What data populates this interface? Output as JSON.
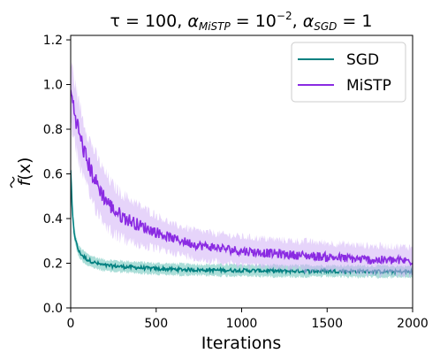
{
  "chart_data": {
    "type": "line",
    "title": "τ = 100, α_MiSTP = 10⁻², α_SGD = 1",
    "title_parts": {
      "tau": "τ = 100, ",
      "alpha": "α",
      "mistp_sub": "MiSTP",
      "mistp_eq": " = 10",
      "mistp_exp": "−2",
      "sep": ", ",
      "sgd_sub": "SGD",
      "sgd_eq": " = 1"
    },
    "xlabel": "Iterations",
    "ylabel": "f̃(x)",
    "ylabel_parts": {
      "f": "f",
      "arg": "(x)"
    },
    "xlim": [
      0,
      2000
    ],
    "ylim": [
      0,
      1.22
    ],
    "x_ticks": [
      0,
      500,
      1000,
      1500,
      2000
    ],
    "y_ticks": [
      0.0,
      0.2,
      0.4,
      0.6,
      0.8,
      1.0,
      1.2
    ],
    "y_tick_labels": [
      "0.0",
      "0.2",
      "0.4",
      "0.6",
      "0.8",
      "1.0",
      "1.2"
    ],
    "grid": false,
    "legend_position": "top-right",
    "series": [
      {
        "name": "SGD",
        "color": "#008080",
        "band_color": "#66c2b8",
        "x": [
          0,
          10,
          20,
          30,
          40,
          50,
          75,
          100,
          150,
          200,
          300,
          400,
          500,
          750,
          1000,
          1250,
          1500,
          1750,
          2000
        ],
        "values": [
          0.62,
          0.42,
          0.34,
          0.3,
          0.27,
          0.25,
          0.23,
          0.215,
          0.2,
          0.19,
          0.185,
          0.18,
          0.175,
          0.17,
          0.168,
          0.165,
          0.165,
          0.163,
          0.162
        ],
        "band_halfwidth": 0.018
      },
      {
        "name": "MiSTP",
        "color": "#8a2be2",
        "band_color": "#d2b0f5",
        "x": [
          0,
          10,
          25,
          50,
          75,
          100,
          150,
          200,
          250,
          300,
          400,
          500,
          600,
          750,
          1000,
          1250,
          1500,
          1750,
          2000
        ],
        "values": [
          0.97,
          0.93,
          0.87,
          0.78,
          0.71,
          0.65,
          0.56,
          0.49,
          0.44,
          0.41,
          0.37,
          0.34,
          0.31,
          0.28,
          0.255,
          0.24,
          0.228,
          0.215,
          0.21
        ],
        "band_halfwidth": 0.045
      }
    ]
  }
}
